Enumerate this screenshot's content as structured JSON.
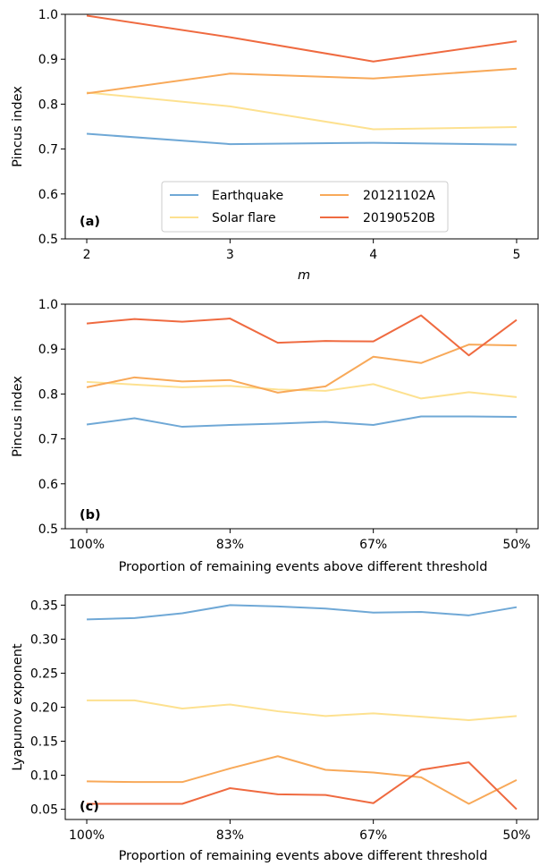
{
  "colors": {
    "earthquake": "#6fa8d6",
    "solar_flare": "#fde190",
    "frb_20121102A": "#f8a959",
    "frb_20190520B": "#ef6a40"
  },
  "chart_data": [
    {
      "type": "line",
      "panel": "(a)",
      "xlabel": "m",
      "ylabel": "Pincus index",
      "x": [
        2,
        3,
        4,
        5
      ],
      "xticks": [
        "2",
        "3",
        "4",
        "5"
      ],
      "xlim": [
        1.85,
        5.15
      ],
      "ylim": [
        0.5,
        1.0
      ],
      "yticks": [
        "0.5",
        "0.6",
        "0.7",
        "0.8",
        "0.9",
        "1.0"
      ],
      "grid": false,
      "legend_position": "lower-center",
      "series": [
        {
          "name": "Earthquake",
          "color_key": "earthquake",
          "values": [
            0.734,
            0.711,
            0.714,
            0.71
          ]
        },
        {
          "name": "Solar flare",
          "color_key": "solar_flare",
          "values": [
            0.826,
            0.795,
            0.744,
            0.749
          ]
        },
        {
          "name": "20121102A",
          "color_key": "frb_20121102A",
          "values": [
            0.824,
            0.868,
            0.857,
            0.879
          ]
        },
        {
          "name": "20190520B",
          "color_key": "frb_20190520B",
          "values": [
            0.997,
            0.949,
            0.895,
            0.94
          ]
        }
      ]
    },
    {
      "type": "line",
      "panel": "(b)",
      "xlabel": "Proportion of remaining events above different threshold",
      "ylabel": "Pincus index",
      "x": [
        0,
        1,
        2,
        3,
        4,
        5,
        6,
        7,
        8,
        9
      ],
      "xticks": [
        "100%",
        "83%",
        "67%",
        "50%"
      ],
      "xtick_positions": [
        0,
        3,
        6,
        9
      ],
      "xlim": [
        -0.45,
        9.45
      ],
      "ylim": [
        0.5,
        1.0
      ],
      "yticks": [
        "0.5",
        "0.6",
        "0.7",
        "0.8",
        "0.9",
        "1.0"
      ],
      "grid": false,
      "series": [
        {
          "color_key": "earthquake",
          "values": [
            0.732,
            0.746,
            0.727,
            0.731,
            0.734,
            0.738,
            0.731,
            0.75,
            0.75,
            0.749
          ]
        },
        {
          "color_key": "solar_flare",
          "values": [
            0.827,
            0.821,
            0.815,
            0.818,
            0.81,
            0.807,
            0.822,
            0.79,
            0.804,
            0.793
          ]
        },
        {
          "color_key": "frb_20121102A",
          "values": [
            0.815,
            0.837,
            0.828,
            0.831,
            0.803,
            0.817,
            0.883,
            0.869,
            0.91,
            0.908
          ]
        },
        {
          "color_key": "frb_20190520B",
          "values": [
            0.957,
            0.967,
            0.961,
            0.968,
            0.914,
            0.918,
            0.917,
            0.975,
            0.886,
            0.965
          ]
        }
      ]
    },
    {
      "type": "line",
      "panel": "(c)",
      "xlabel": "Proportion of remaining events above different threshold",
      "ylabel": "Lyapunov exponent",
      "x": [
        0,
        1,
        2,
        3,
        4,
        5,
        6,
        7,
        8,
        9
      ],
      "xticks": [
        "100%",
        "83%",
        "67%",
        "50%"
      ],
      "xtick_positions": [
        0,
        3,
        6,
        9
      ],
      "xlim": [
        -0.45,
        9.45
      ],
      "ylim": [
        0.035,
        0.365
      ],
      "yticks": [
        "0.05",
        "0.10",
        "0.15",
        "0.20",
        "0.25",
        "0.30",
        "0.35"
      ],
      "ytick_values": [
        0.05,
        0.1,
        0.15,
        0.2,
        0.25,
        0.3,
        0.35
      ],
      "grid": false,
      "series": [
        {
          "color_key": "earthquake",
          "values": [
            0.329,
            0.331,
            0.338,
            0.35,
            0.348,
            0.345,
            0.339,
            0.34,
            0.335,
            0.347
          ]
        },
        {
          "color_key": "solar_flare",
          "values": [
            0.21,
            0.21,
            0.198,
            0.204,
            0.194,
            0.187,
            0.191,
            0.186,
            0.181,
            0.187
          ]
        },
        {
          "color_key": "frb_20121102A",
          "values": [
            0.091,
            0.09,
            0.09,
            0.11,
            0.128,
            0.108,
            0.104,
            0.097,
            0.058,
            0.093
          ]
        },
        {
          "color_key": "frb_20190520B",
          "values": [
            0.058,
            0.058,
            0.058,
            0.081,
            0.072,
            0.071,
            0.059,
            0.108,
            0.119,
            0.05
          ]
        }
      ]
    }
  ]
}
